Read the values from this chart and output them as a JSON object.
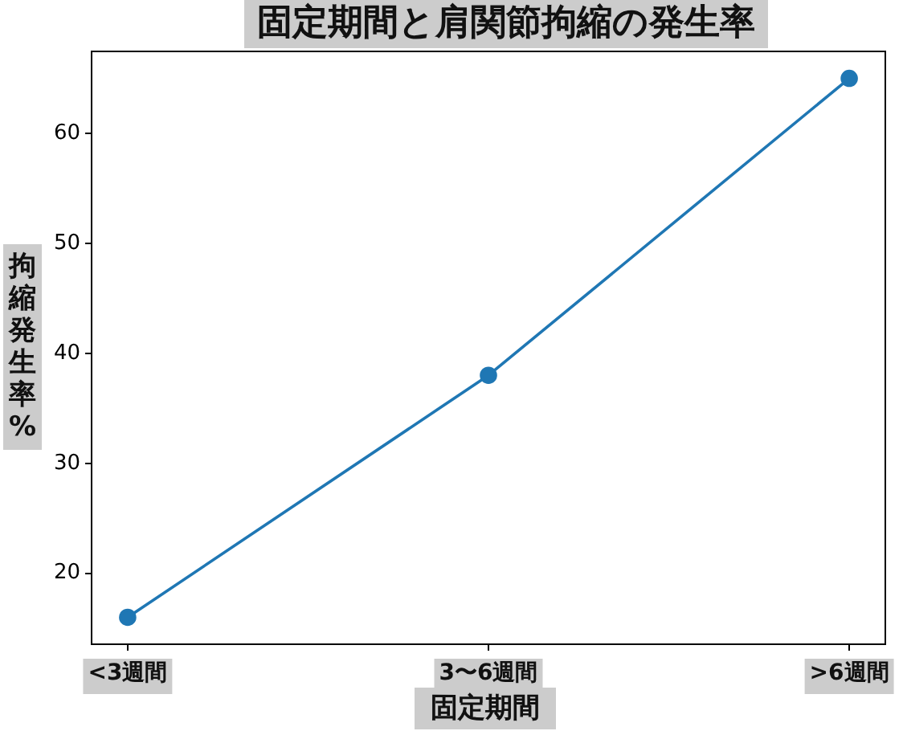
{
  "chart_data": {
    "type": "line",
    "title": "固定期間と肩関節拘縮の発生率",
    "xlabel": "固定期間",
    "ylabel": "拘縮発生率%",
    "categories": [
      "<3週間",
      "3〜6週間",
      ">6週間"
    ],
    "series": [
      {
        "color": "#1f77b4",
        "values": [
          16,
          38,
          65
        ]
      }
    ],
    "ylim": [
      13.55,
      67.45
    ],
    "yticks": [
      20,
      30,
      40,
      50,
      60
    ],
    "grid": false,
    "legend": false,
    "marker": "circle",
    "line_style": "solid"
  }
}
